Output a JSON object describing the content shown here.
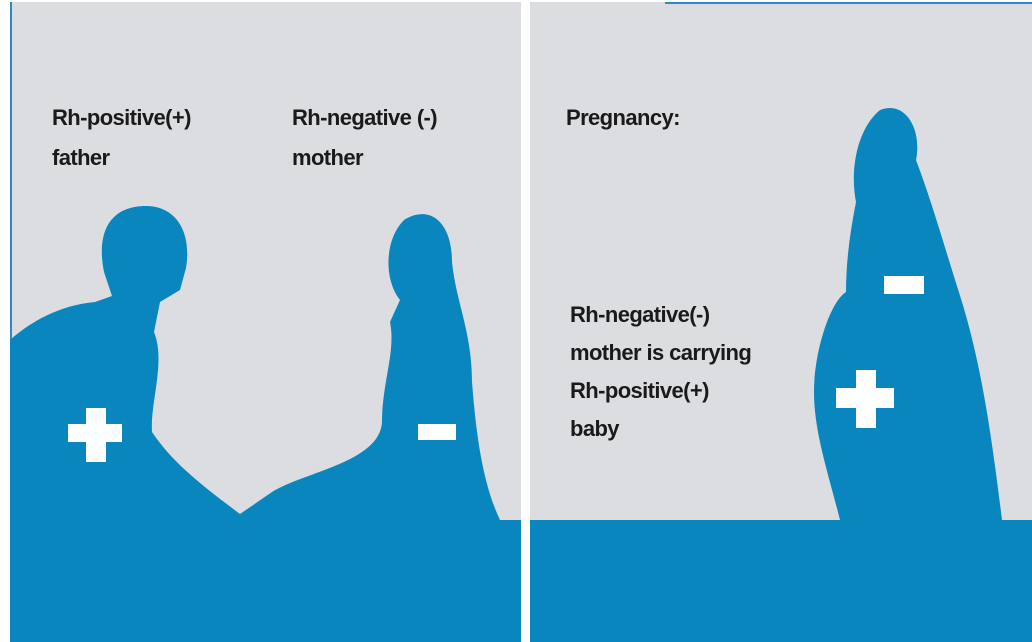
{
  "panels": [
    {
      "labels": [
        {
          "lines": [
            "Rh-positive(+)",
            "father"
          ]
        },
        {
          "lines": [
            "Rh-negative (-)",
            "mother"
          ]
        }
      ]
    },
    {
      "labels": [
        {
          "lines": [
            "Pregnancy:"
          ]
        },
        {
          "lines": [
            "Rh-negative(-)",
            "mother is carrying",
            "Rh-positive(+)",
            "baby"
          ]
        }
      ]
    }
  ]
}
